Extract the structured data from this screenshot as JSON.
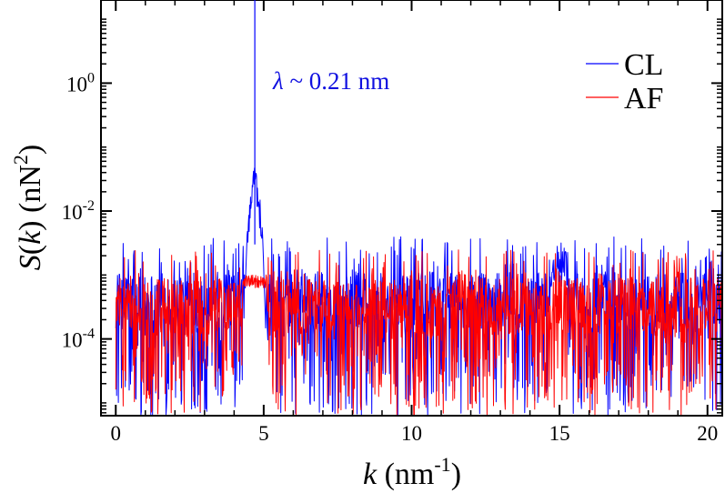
{
  "chart_data": {
    "type": "line",
    "title": "",
    "xlabel": {
      "var": "k",
      "unit_open": " (nm",
      "unit_exp": "-1",
      "unit_close": ")"
    },
    "ylabel": {
      "var": "S",
      "open": "(",
      "arg": "k",
      "close": ")",
      "unit_open": " (nN",
      "unit_exp": "2",
      "unit_close": ")"
    },
    "x_range": [
      -0.5,
      20.5
    ],
    "y_scale": "log",
    "y_range_log10": [
      -5.2,
      1.3
    ],
    "x_ticks": [
      {
        "value": 0,
        "label": "0"
      },
      {
        "value": 5,
        "label": "5"
      },
      {
        "value": 10,
        "label": "10"
      },
      {
        "value": 15,
        "label": "15"
      },
      {
        "value": 20,
        "label": "20"
      }
    ],
    "y_ticks": [
      {
        "exp": 0,
        "base": "10",
        "sup": "0"
      },
      {
        "exp": -2,
        "base": "10",
        "sup": "-2"
      },
      {
        "exp": -4,
        "base": "10",
        "sup": "-4"
      }
    ],
    "legend": {
      "placement": "top-right"
    },
    "grid": false,
    "annotation": {
      "symbol": "λ",
      "text": " ~ 0.21 nm",
      "color": "#1010e0"
    },
    "series": [
      {
        "name": "CL",
        "color": "#0000ff",
        "peak": {
          "x": 4.7,
          "value": 20.0
        },
        "baseline_log10": -3.4,
        "noise_log10": [
          -5.2,
          -2.4
        ],
        "secondary_peak": {
          "x": 15.0,
          "value": 0.0007
        },
        "x_sampled": [
          0,
          1,
          2,
          3,
          4,
          4.5,
          4.7,
          5,
          6,
          8,
          10,
          12,
          14,
          15,
          16,
          18,
          20
        ],
        "values": [
          0.0004,
          0.0005,
          0.0004,
          0.0005,
          0.0006,
          0.004,
          20.0,
          0.002,
          0.0005,
          0.0004,
          0.0005,
          0.0004,
          0.0005,
          0.0007,
          0.0005,
          0.0004,
          0.0005
        ]
      },
      {
        "name": "AF",
        "color": "#ff0000",
        "baseline_log10": -3.5,
        "noise_log10": [
          -5.2,
          -2.6
        ],
        "x_sampled": [
          0,
          1,
          2,
          3,
          4,
          4.5,
          4.7,
          5,
          6,
          8,
          10,
          12,
          14,
          15,
          16,
          18,
          20
        ],
        "values": [
          0.0003,
          0.0004,
          0.0003,
          0.0004,
          0.0003,
          0.0005,
          0.0008,
          0.0003,
          0.0003,
          0.0004,
          0.0003,
          0.0004,
          0.0003,
          0.0003,
          0.0004,
          0.0003,
          0.0003
        ]
      }
    ]
  }
}
